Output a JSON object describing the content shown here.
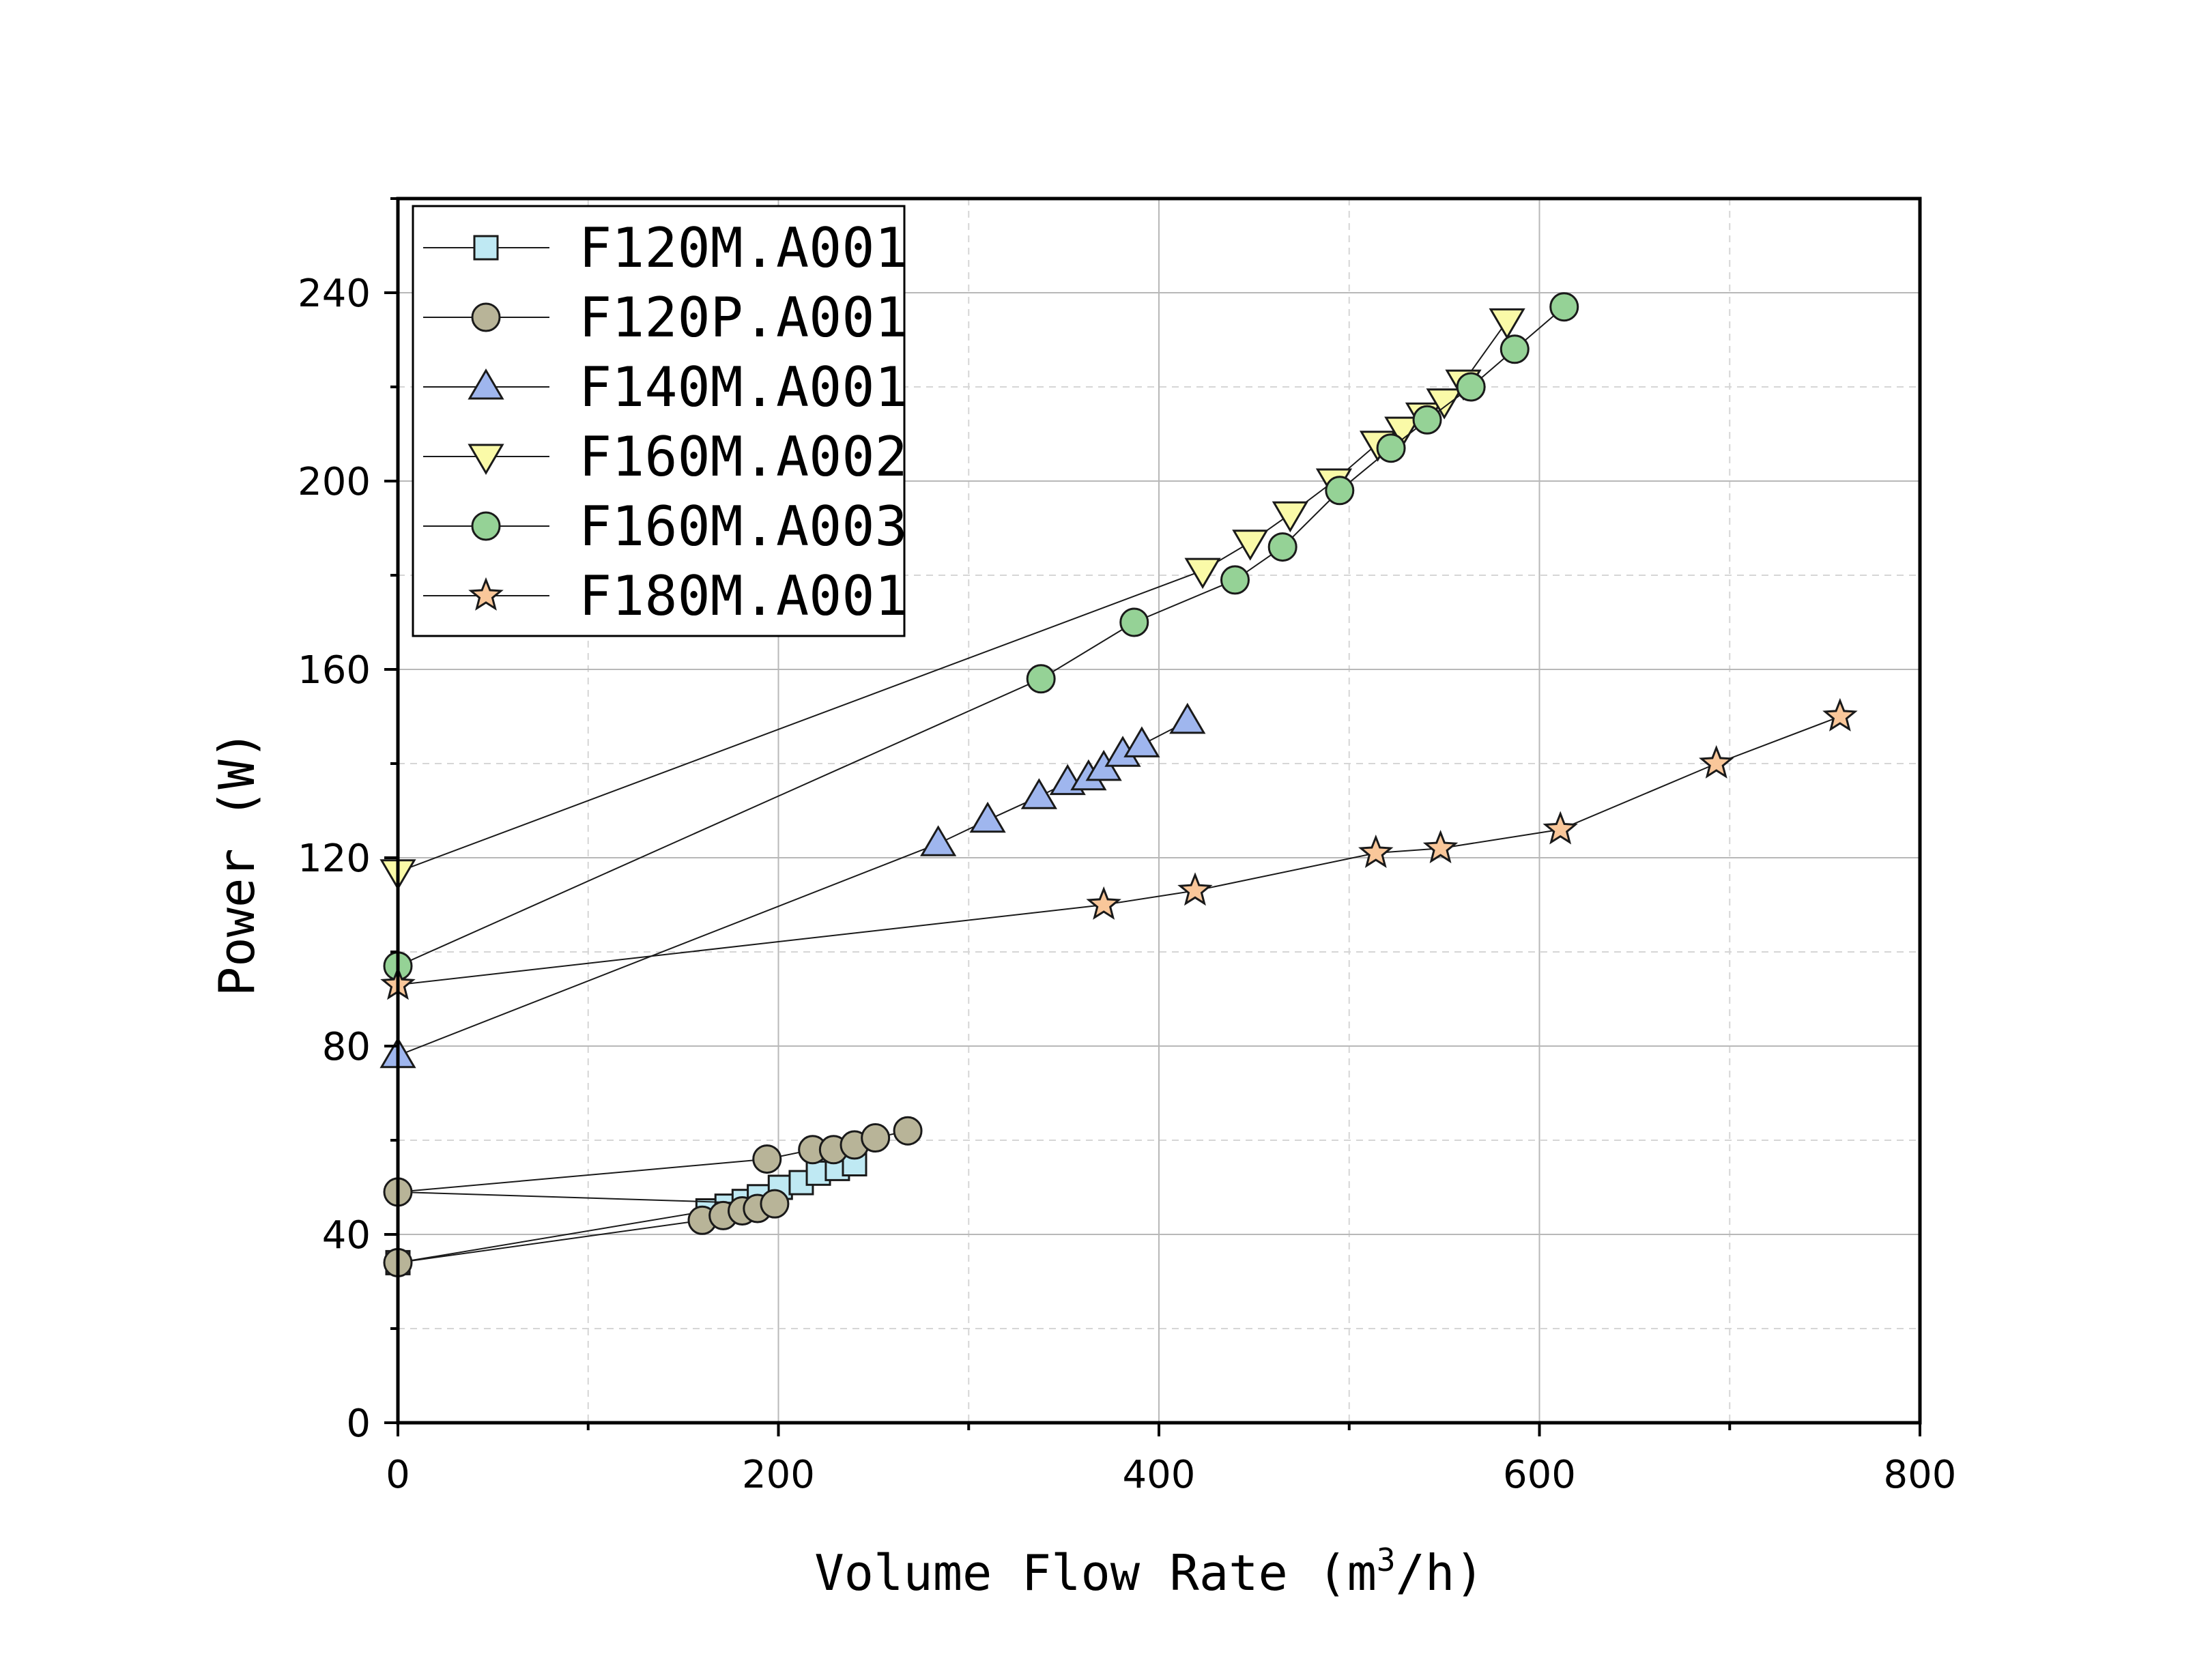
{
  "chart_data": {
    "type": "scatter",
    "title": "",
    "xlabel": "Volume Flow Rate (m3/h)",
    "xlabel_parts": {
      "pre": "Volume Flow Rate (m",
      "sup": "3",
      "post": "/h)"
    },
    "ylabel": "Power (W)",
    "xlim": [
      0,
      800
    ],
    "ylim": [
      0,
      260
    ],
    "xticks": [
      0,
      200,
      400,
      600,
      800
    ],
    "yticks": [
      0,
      40,
      80,
      120,
      160,
      200,
      240
    ],
    "xtick_labels": [
      "0",
      "200",
      "400",
      "600",
      "800"
    ],
    "ytick_labels": [
      "0",
      "40",
      "80",
      "120",
      "160",
      "200",
      "240"
    ],
    "grid": true,
    "legend_position": "top-left",
    "series": [
      {
        "name": "F120M.A001",
        "marker": "square",
        "color": "#bfe9f3",
        "x": [
          0,
          163,
          173,
          182,
          190,
          201,
          212,
          221,
          231,
          240
        ],
        "y": [
          34,
          45,
          46,
          47,
          48,
          50,
          51,
          53,
          54,
          55
        ]
      },
      {
        "name": "F120P.A001",
        "marker": "circle",
        "color": "#b8b498",
        "x": [
          0,
          160,
          171,
          181,
          189,
          198,
          0,
          194,
          218,
          229,
          240,
          251,
          268
        ],
        "y": [
          34,
          43,
          44,
          45,
          45.5,
          46.5,
          49,
          56,
          58,
          58,
          59,
          60.5,
          62
        ]
      },
      {
        "name": "F140M.A001",
        "marker": "triangle-up",
        "color": "#9fb6ee",
        "x": [
          0,
          284,
          310,
          337,
          352,
          363,
          371,
          381,
          391,
          415
        ],
        "y": [
          78,
          123,
          128,
          133,
          136,
          137,
          139,
          142,
          144,
          149
        ]
      },
      {
        "name": "F160M.A002",
        "marker": "triangle-down",
        "color": "#fafaa8",
        "x": [
          0,
          423,
          448,
          469,
          492,
          515,
          528,
          539,
          550,
          560,
          583
        ],
        "y": [
          117,
          181,
          187,
          193,
          200,
          208,
          211,
          214,
          217,
          221,
          234
        ]
      },
      {
        "name": "F160M.A003",
        "marker": "circle",
        "color": "#95d296",
        "x": [
          0,
          338,
          387,
          440,
          465,
          495,
          522,
          541,
          564,
          587,
          613
        ],
        "y": [
          97,
          158,
          170,
          179,
          186,
          198,
          207,
          213,
          220,
          228,
          237
        ]
      },
      {
        "name": "F180M.A001",
        "marker": "star",
        "color": "#f9c79a",
        "x": [
          0,
          371,
          419,
          514,
          548,
          611,
          693,
          758
        ],
        "y": [
          93,
          110,
          113,
          121,
          122,
          126,
          140,
          150
        ]
      }
    ]
  }
}
